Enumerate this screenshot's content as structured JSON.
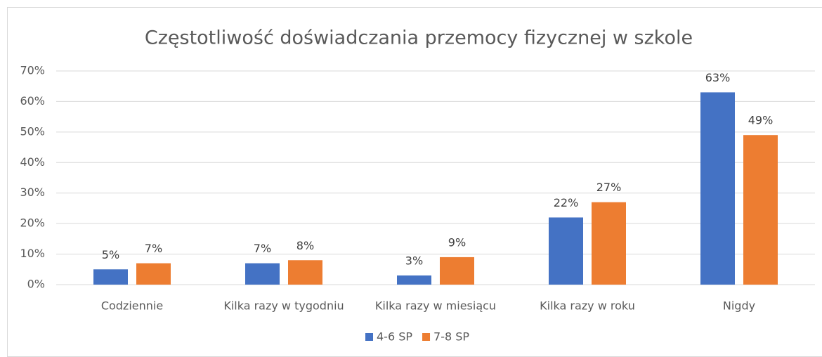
{
  "chart_data": {
    "type": "bar",
    "title": "Częstotliwość doświadczania przemocy fizycznej w szkole",
    "categories": [
      "Codziennie",
      "Kilka razy w tygodniu",
      "Kilka razy w miesiącu",
      "Kilka razy w roku",
      "Nigdy"
    ],
    "series": [
      {
        "name": "4-6 SP",
        "color": "#4472c4",
        "values": [
          5,
          7,
          3,
          22,
          63
        ],
        "value_labels": [
          "5%",
          "7%",
          "3%",
          "22%",
          "63%"
        ]
      },
      {
        "name": "7-8 SP",
        "color": "#ed7d31",
        "values": [
          7,
          8,
          9,
          27,
          49
        ],
        "value_labels": [
          "7%",
          "8%",
          "9%",
          "27%",
          "49%"
        ]
      }
    ],
    "ylim": [
      0,
      70
    ],
    "yticks": [
      {
        "value": 0,
        "label": "0%"
      },
      {
        "value": 10,
        "label": "10%"
      },
      {
        "value": 20,
        "label": "20%"
      },
      {
        "value": 30,
        "label": "30%"
      },
      {
        "value": 40,
        "label": "40%"
      },
      {
        "value": 50,
        "label": "50%"
      },
      {
        "value": 60,
        "label": "60%"
      },
      {
        "value": 70,
        "label": "70%"
      }
    ],
    "grid": true,
    "legend": "bottom"
  }
}
